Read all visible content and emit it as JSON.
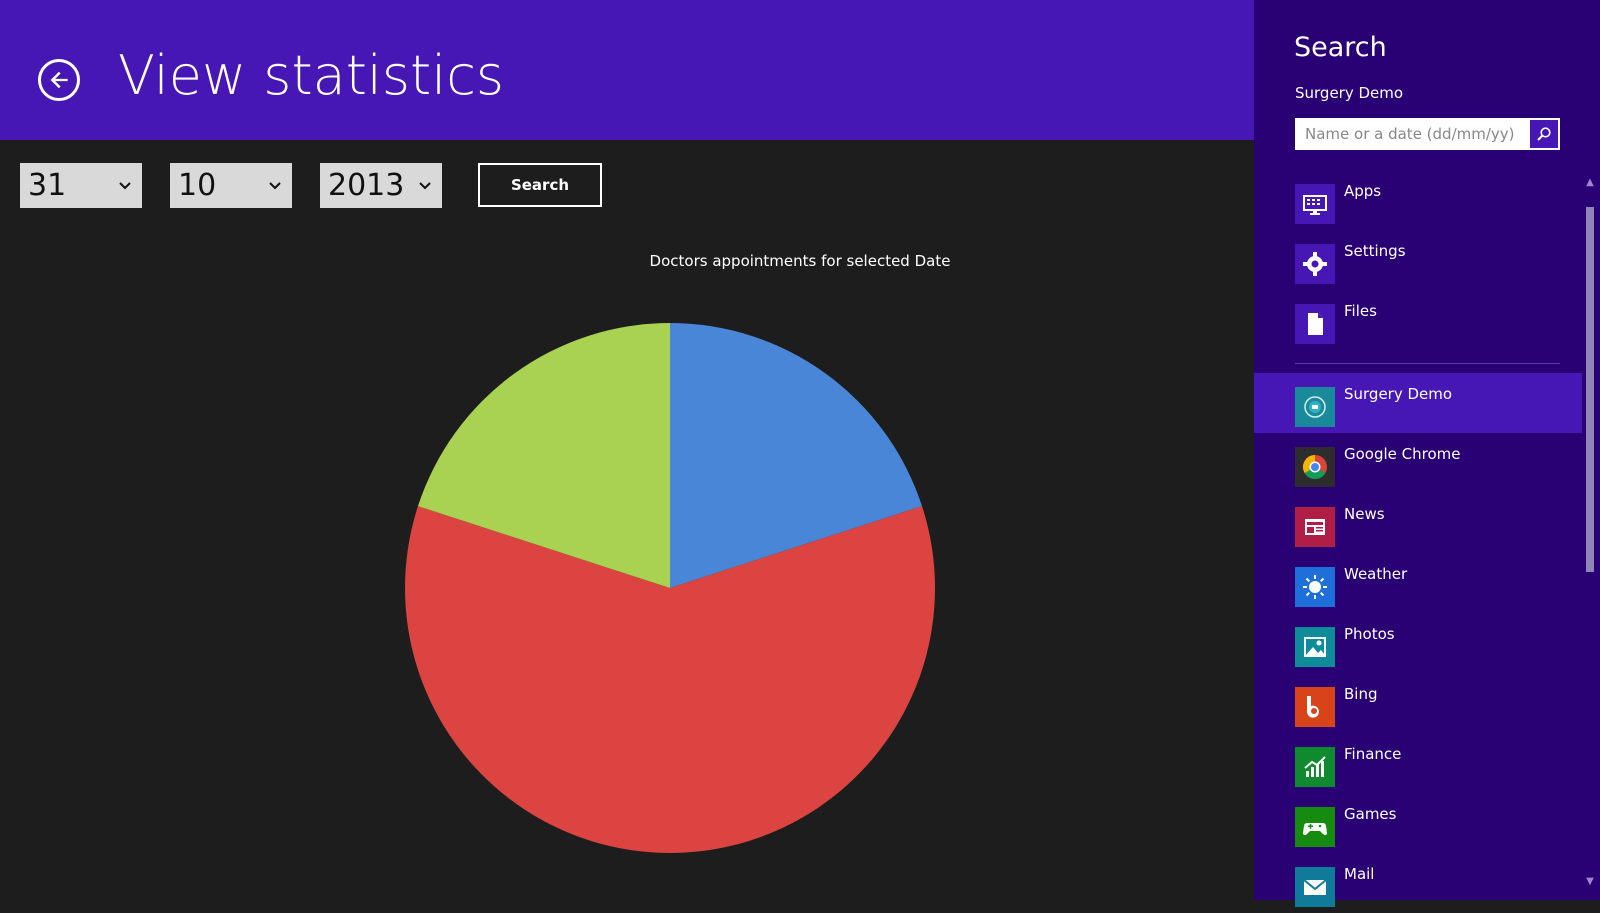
{
  "header": {
    "title": "View statistics"
  },
  "filters": {
    "day": "31",
    "month": "10",
    "year": "2013",
    "search_label": "Search"
  },
  "chart_title": "Doctors appointments for selected Date",
  "chart_data": {
    "type": "pie",
    "title": "Doctors appointments for selected Date",
    "slices": [
      {
        "value": 20,
        "color": "#4a86d8"
      },
      {
        "value": 60,
        "color": "#db4440"
      },
      {
        "value": 20,
        "color": "#a9d152"
      }
    ],
    "start_angle_deg": 0,
    "direction": "clockwise"
  },
  "charm": {
    "title": "Search",
    "app_name": "Surgery Demo",
    "search_placeholder": "Name or a date (dd/mm/yy)",
    "scopes": [
      {
        "label": "Apps",
        "icon": "apps-icon",
        "color": "#4617b4"
      },
      {
        "label": "Settings",
        "icon": "gear-icon",
        "color": "#4617b4"
      },
      {
        "label": "Files",
        "icon": "file-icon",
        "color": "#4617b4"
      }
    ],
    "apps": [
      {
        "label": "Surgery Demo",
        "icon": "surgery-demo-icon",
        "color": "#1a8a9a",
        "selected": true
      },
      {
        "label": "Google Chrome",
        "icon": "chrome-icon",
        "color": "#2d2d2d",
        "selected": false
      },
      {
        "label": "News",
        "icon": "news-icon",
        "color": "#b01e45",
        "selected": false
      },
      {
        "label": "Weather",
        "icon": "weather-icon",
        "color": "#1e6fd9",
        "selected": false
      },
      {
        "label": "Photos",
        "icon": "photos-icon",
        "color": "#0f8c9a",
        "selected": false
      },
      {
        "label": "Bing",
        "icon": "bing-icon",
        "color": "#d8431a",
        "selected": false
      },
      {
        "label": "Finance",
        "icon": "finance-icon",
        "color": "#0f8a2e",
        "selected": false
      },
      {
        "label": "Games",
        "icon": "games-icon",
        "color": "#158c0f",
        "selected": false
      },
      {
        "label": "Mail",
        "icon": "mail-icon",
        "color": "#0f7a9a",
        "selected": false
      }
    ]
  }
}
